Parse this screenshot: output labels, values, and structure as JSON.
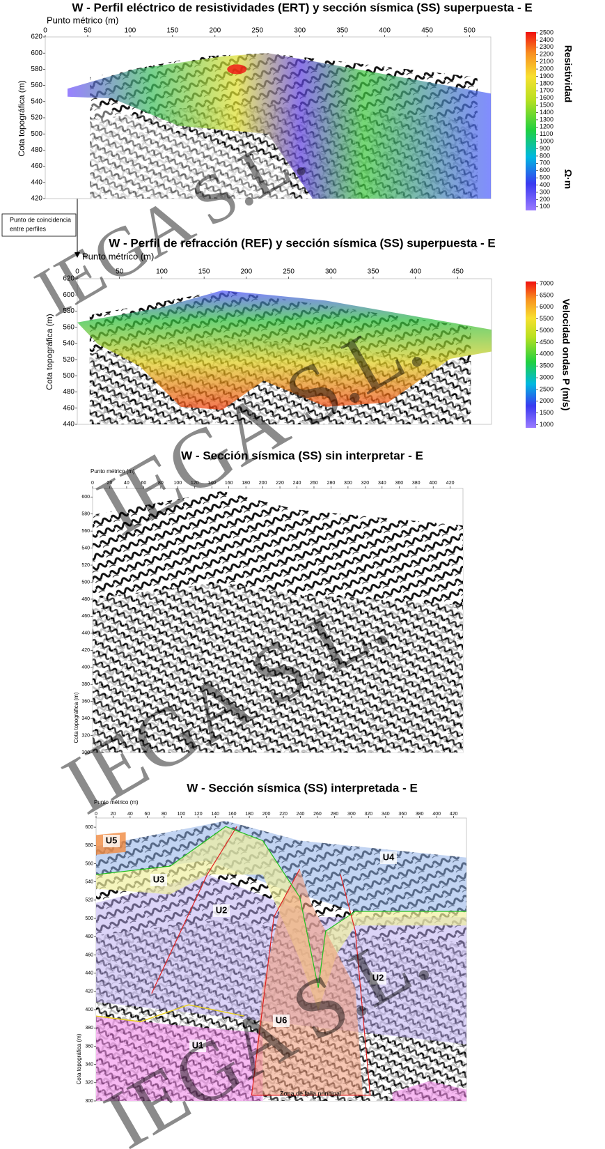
{
  "watermark": "IEGA S.L.",
  "annotation": [
    "Punto de coincidencia",
    "entre perfiles"
  ],
  "panels": [
    {
      "title": "W - Perfil eléctrico de resistividades (ERT) y sección sísmica (SS) superpuesta - E",
      "x_label": "Punto métrico (m)",
      "y_label": "Cota topográfica (m)",
      "xlim": [
        0,
        525
      ],
      "xticks": [
        0,
        50,
        100,
        150,
        200,
        250,
        300,
        350,
        400,
        450,
        500
      ],
      "ylim": [
        420,
        620
      ],
      "yticks": [
        420,
        440,
        460,
        480,
        500,
        520,
        540,
        560,
        580,
        600,
        620
      ],
      "colorbar": {
        "label": [
          "Resistividad",
          "Ω·m"
        ],
        "lim": [
          50,
          2510
        ],
        "ticks": [
          100,
          200,
          300,
          400,
          500,
          600,
          700,
          800,
          900,
          1000,
          1100,
          1200,
          1300,
          1400,
          1500,
          1600,
          1700,
          1800,
          1900,
          2000,
          2100,
          2200,
          2300,
          2400,
          2500
        ]
      }
    },
    {
      "title": "W - Perfil de refracción (REF) y sección sísmica (SS) superpuesta - E",
      "x_label": "Punto métrico (m)",
      "y_label": "Cota topográfica (m)",
      "xlim": [
        0,
        490
      ],
      "xticks": [
        0,
        50,
        100,
        150,
        200,
        250,
        300,
        350,
        400,
        450
      ],
      "ylim": [
        440,
        620
      ],
      "yticks": [
        440,
        460,
        480,
        500,
        520,
        540,
        560,
        580,
        600,
        620
      ],
      "colorbar": {
        "label": [
          "Velocidad ondas P (m/s)"
        ],
        "lim": [
          870,
          7090
        ],
        "ticks": [
          1000,
          1500,
          2000,
          2500,
          3000,
          3500,
          4000,
          4500,
          5000,
          5500,
          6000,
          6500,
          7000
        ]
      }
    },
    {
      "title": "W - Sección sísmica (SS) sin interpretar - E",
      "x_label": "Punto métrico (m)",
      "y_label": "Cota topográfica (m)",
      "xlim": [
        0,
        435
      ],
      "xticks": [
        0,
        20,
        40,
        60,
        80,
        100,
        120,
        140,
        160,
        180,
        200,
        220,
        240,
        260,
        280,
        300,
        320,
        340,
        360,
        380,
        400,
        420
      ],
      "ylim": [
        300,
        610
      ],
      "yticks": [
        300,
        320,
        340,
        360,
        380,
        400,
        420,
        440,
        460,
        480,
        500,
        520,
        540,
        560,
        580,
        600
      ]
    },
    {
      "title": "W - Sección sísmica (SS) interpretada - E",
      "x_label": "Punto métrico (m)",
      "y_label": "Cota topográfica (m)",
      "xlim": [
        0,
        435
      ],
      "xticks": [
        0,
        20,
        40,
        60,
        80,
        100,
        120,
        140,
        160,
        180,
        200,
        220,
        240,
        260,
        280,
        300,
        320,
        340,
        360,
        380,
        400,
        420
      ],
      "ylim": [
        300,
        610
      ],
      "yticks": [
        300,
        320,
        340,
        360,
        380,
        400,
        420,
        440,
        460,
        480,
        500,
        520,
        540,
        560,
        580,
        600
      ],
      "units": [
        "U5",
        "U3",
        "U2",
        "U4",
        "U2",
        "U6",
        "U1"
      ],
      "fault_label": "Zona de falla principal"
    }
  ]
}
